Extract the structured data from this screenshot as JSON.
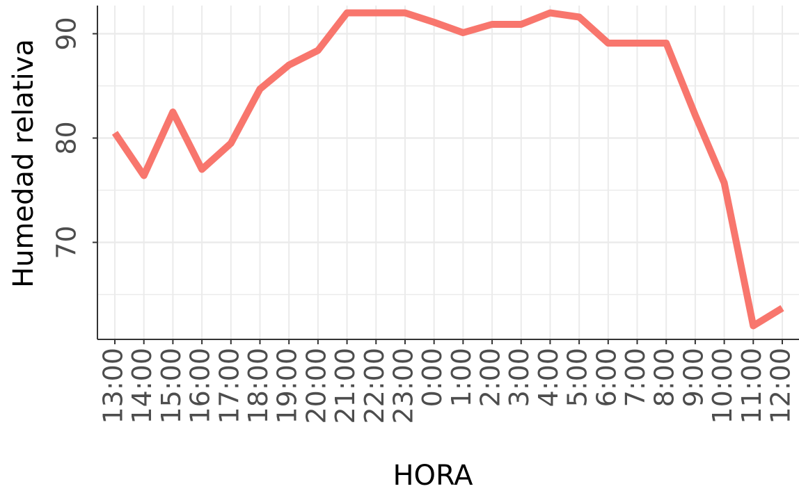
{
  "chart_data": {
    "type": "line",
    "x_label": "HORA",
    "y_label": "Humedad relativa",
    "categories": [
      "13:00",
      "14:00",
      "15:00",
      "16:00",
      "17:00",
      "18:00",
      "19:00",
      "20:00",
      "21:00",
      "22:00",
      "23:00",
      "0:00",
      "1:00",
      "2:00",
      "3:00",
      "4:00",
      "5:00",
      "6:00",
      "7:00",
      "8:00",
      "9:00",
      "10:00",
      "11:00",
      "12:00"
    ],
    "series": [
      {
        "color": "#f8766d",
        "values": [
          80.5,
          76.4,
          82.5,
          77,
          79.5,
          84.7,
          87,
          88.4,
          92,
          92,
          92,
          91.1,
          90.1,
          90.9,
          90.9,
          92,
          91.6,
          89.1,
          89.1,
          89.1,
          82.2,
          75.7,
          62,
          63.7
        ]
      }
    ],
    "ylim": [
      60.7,
      92.7
    ],
    "yticks": [
      70,
      80,
      90
    ],
    "grid": true
  }
}
